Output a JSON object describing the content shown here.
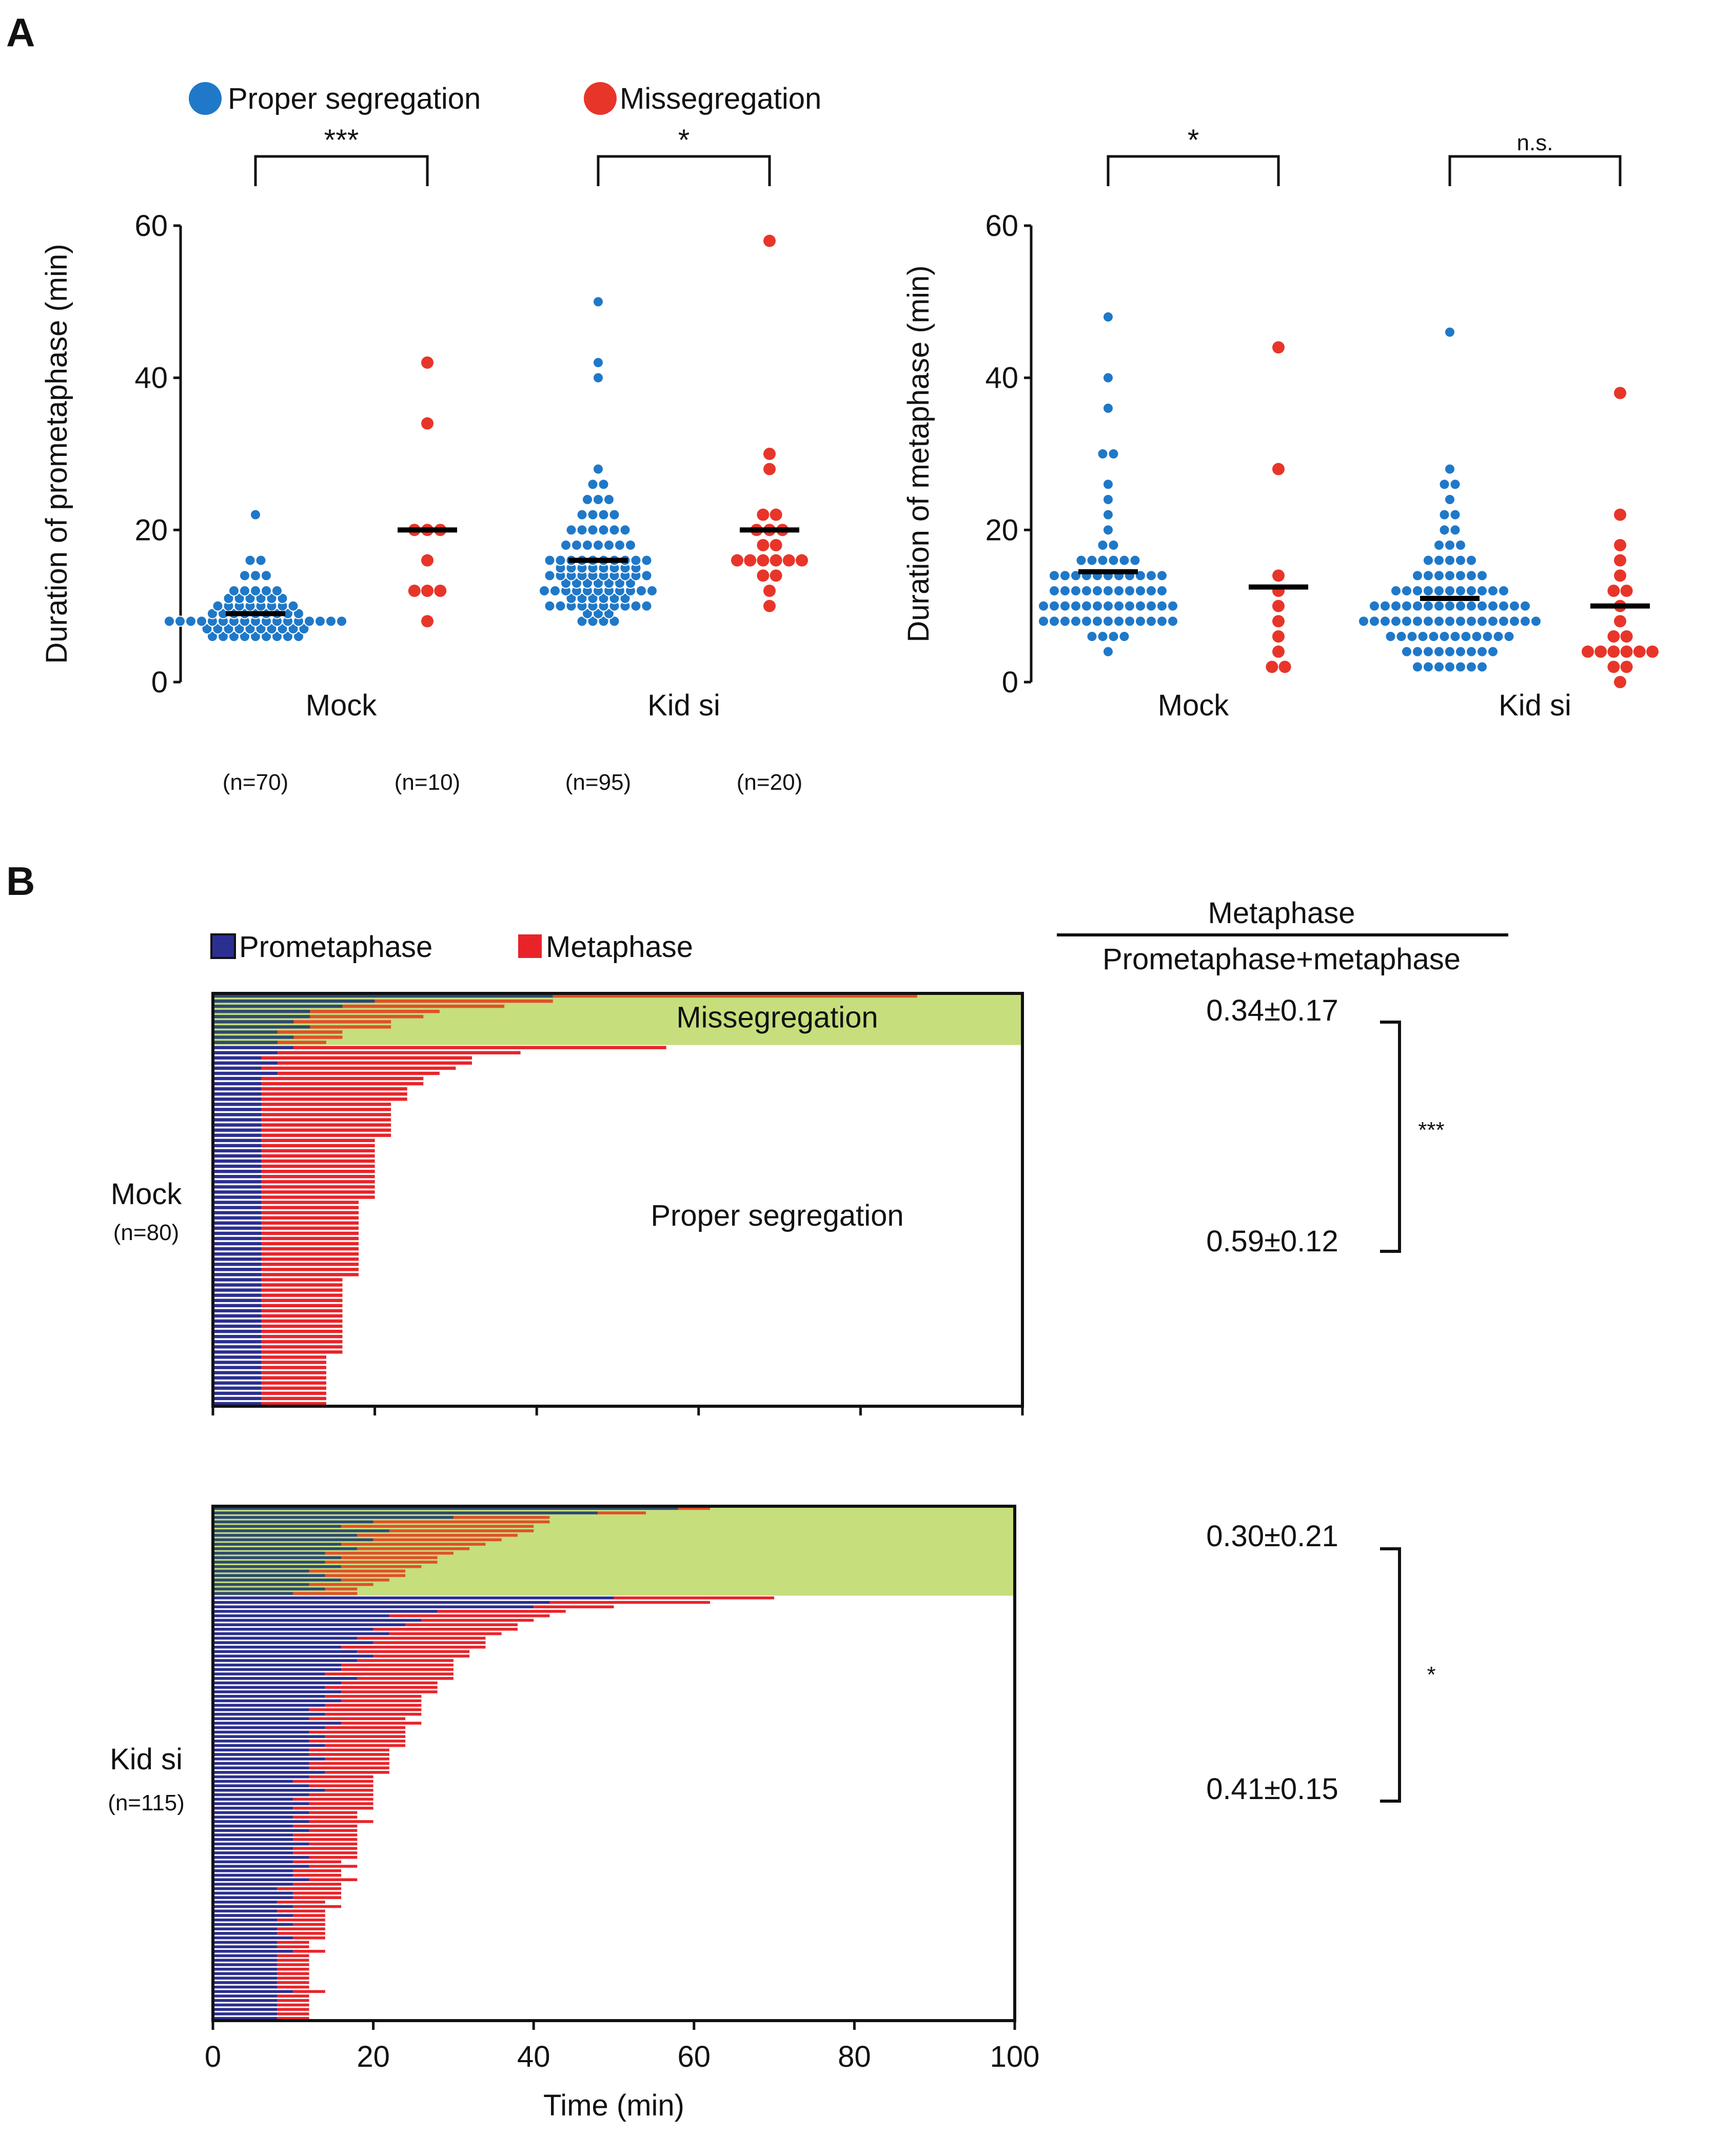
{
  "panel_a_label": "A",
  "panel_b_label": "B",
  "legend_a": {
    "proper": {
      "label": "Proper segregation",
      "color": "#1f78c8"
    },
    "missegregation": {
      "label": "Missegregation",
      "color": "#e8352a"
    }
  },
  "legend_b": {
    "prometaphase": {
      "label": "Prometaphase",
      "color": "#2b2f8f"
    },
    "metaphase": {
      "label": "Metaphase",
      "color": "#e8242a"
    }
  },
  "ratio_header": {
    "numerator": "Metaphase",
    "denominator": "Prometaphase+metaphase"
  },
  "n_labels": [
    "(n=70)",
    "(n=10)",
    "(n=95)",
    "(n=20)"
  ],
  "chart_data": [
    {
      "type": "scatter",
      "title": "",
      "ylabel": "Duration of prometaphase (min)",
      "xlabel": "",
      "ylim": [
        0,
        60
      ],
      "yticks": [
        0,
        20,
        40,
        60
      ],
      "groups": [
        "Mock",
        "Kid si"
      ],
      "significance": [
        {
          "group": "Mock",
          "label": "***"
        },
        {
          "group": "Kid si",
          "label": "*"
        }
      ],
      "series": [
        {
          "name": "Proper segregation",
          "group": "Mock",
          "n": 70,
          "mean": 9,
          "values": [
            22,
            16,
            16,
            14,
            14,
            14,
            12,
            12,
            12,
            12,
            12,
            11,
            11,
            11,
            11,
            11,
            11,
            10,
            10,
            10,
            10,
            10,
            10,
            10,
            10,
            9,
            9,
            9,
            9,
            9,
            9,
            9,
            9,
            9,
            8,
            8,
            8,
            8,
            8,
            8,
            8,
            8,
            8,
            8,
            8,
            8,
            8,
            8,
            8,
            8,
            8,
            7,
            7,
            7,
            7,
            7,
            7,
            7,
            7,
            7,
            7,
            6,
            6,
            6,
            6,
            6,
            6,
            6,
            6,
            6
          ]
        },
        {
          "name": "Missegregation",
          "group": "Mock",
          "n": 10,
          "mean": 20,
          "values": [
            42,
            34,
            20,
            20,
            20,
            16,
            12,
            12,
            12,
            8
          ]
        },
        {
          "name": "Proper segregation",
          "group": "Kid si",
          "n": 95,
          "mean": 16,
          "values": [
            50,
            42,
            40,
            28,
            26,
            26,
            24,
            24,
            24,
            22,
            22,
            22,
            22,
            20,
            20,
            20,
            20,
            20,
            20,
            18,
            18,
            18,
            18,
            18,
            18,
            18,
            16,
            16,
            16,
            16,
            16,
            16,
            16,
            16,
            16,
            16,
            15,
            15,
            15,
            15,
            15,
            15,
            15,
            15,
            14,
            14,
            14,
            14,
            14,
            14,
            14,
            14,
            14,
            14,
            13,
            13,
            13,
            13,
            13,
            13,
            13,
            12,
            12,
            12,
            12,
            12,
            12,
            12,
            12,
            12,
            12,
            12,
            11,
            11,
            11,
            11,
            11,
            11,
            10,
            10,
            10,
            10,
            10,
            10,
            10,
            10,
            10,
            10,
            9,
            9,
            9,
            8,
            8,
            8,
            8
          ]
        },
        {
          "name": "Missegregation",
          "group": "Kid si",
          "n": 20,
          "mean": 20,
          "values": [
            58,
            30,
            28,
            22,
            22,
            20,
            20,
            20,
            18,
            18,
            16,
            16,
            16,
            16,
            16,
            16,
            14,
            14,
            12,
            10
          ]
        }
      ]
    },
    {
      "type": "scatter",
      "title": "",
      "ylabel": "Duration of metaphase (min)",
      "xlabel": "",
      "ylim": [
        0,
        60
      ],
      "yticks": [
        0,
        20,
        40,
        60
      ],
      "groups": [
        "Mock",
        "Kid si"
      ],
      "significance": [
        {
          "group": "Mock",
          "label": "*"
        },
        {
          "group": "Kid si",
          "label": "n.s."
        }
      ],
      "series": [
        {
          "name": "Proper segregation",
          "group": "Mock",
          "n": 70,
          "mean": 14.5,
          "values": [
            48,
            40,
            36,
            30,
            30,
            26,
            24,
            22,
            20,
            18,
            18,
            16,
            16,
            16,
            16,
            16,
            14,
            14,
            14,
            14,
            14,
            14,
            14,
            14,
            14,
            14,
            12,
            12,
            12,
            12,
            12,
            12,
            12,
            12,
            12,
            12,
            10,
            10,
            10,
            10,
            10,
            10,
            10,
            10,
            10,
            10,
            10,
            10,
            10,
            8,
            8,
            8,
            8,
            8,
            8,
            8,
            8,
            8,
            8,
            8,
            8,
            8,
            6,
            6,
            6,
            6,
            4,
            14,
            12,
            16
          ]
        },
        {
          "name": "Missegregation",
          "group": "Mock",
          "n": 10,
          "mean": 12.5,
          "values": [
            44,
            28,
            14,
            12,
            10,
            8,
            6,
            4,
            2,
            2
          ]
        },
        {
          "name": "Proper segregation",
          "group": "Kid si",
          "n": 95,
          "mean": 11,
          "values": [
            46,
            28,
            26,
            26,
            24,
            22,
            22,
            20,
            20,
            18,
            18,
            18,
            16,
            16,
            16,
            16,
            16,
            14,
            14,
            14,
            14,
            14,
            14,
            14,
            12,
            12,
            12,
            12,
            12,
            12,
            12,
            12,
            12,
            12,
            10,
            10,
            10,
            10,
            10,
            10,
            10,
            10,
            10,
            10,
            10,
            10,
            10,
            10,
            8,
            8,
            8,
            8,
            8,
            8,
            8,
            8,
            8,
            8,
            8,
            8,
            8,
            8,
            8,
            8,
            6,
            6,
            6,
            6,
            6,
            6,
            6,
            6,
            6,
            6,
            6,
            6,
            4,
            4,
            4,
            4,
            4,
            4,
            4,
            4,
            4,
            2,
            2,
            2,
            2,
            2,
            2,
            2,
            12,
            10,
            8
          ]
        },
        {
          "name": "Missegregation",
          "group": "Kid si",
          "n": 20,
          "mean": 10,
          "values": [
            38,
            22,
            18,
            16,
            14,
            12,
            12,
            10,
            8,
            6,
            6,
            4,
            4,
            4,
            4,
            4,
            4,
            2,
            2,
            0
          ]
        }
      ]
    },
    {
      "type": "bar",
      "orientation": "horizontal-stacked",
      "title": "Mock",
      "group_label": "Mock",
      "n_label": "(n=80)",
      "xlim": [
        0,
        100
      ],
      "xticks": [
        0,
        20,
        40,
        60,
        80,
        100
      ],
      "missegregation_label": "Missegregation",
      "proper_label": "Proper segregation",
      "ratios": {
        "missegregation": "0.34±0.17",
        "proper": "0.59±0.12"
      },
      "significance": "***",
      "series_names": [
        "Prometaphase",
        "Metaphase"
      ],
      "missegregation_count": 10,
      "cells": [
        [
          42,
          45
        ],
        [
          20,
          22
        ],
        [
          16,
          20
        ],
        [
          12,
          16
        ],
        [
          12,
          14
        ],
        [
          10,
          12
        ],
        [
          12,
          10
        ],
        [
          8,
          8
        ],
        [
          10,
          6
        ],
        [
          8,
          6
        ],
        [
          10,
          46
        ],
        [
          8,
          30
        ],
        [
          6,
          26
        ],
        [
          8,
          24
        ],
        [
          6,
          24
        ],
        [
          8,
          20
        ],
        [
          6,
          20
        ],
        [
          6,
          20
        ],
        [
          6,
          18
        ],
        [
          6,
          18
        ],
        [
          6,
          18
        ],
        [
          6,
          16
        ],
        [
          6,
          16
        ],
        [
          6,
          16
        ],
        [
          6,
          16
        ],
        [
          6,
          16
        ],
        [
          6,
          16
        ],
        [
          6,
          16
        ],
        [
          6,
          14
        ],
        [
          6,
          14
        ],
        [
          6,
          14
        ],
        [
          6,
          14
        ],
        [
          6,
          14
        ],
        [
          6,
          14
        ],
        [
          6,
          14
        ],
        [
          6,
          14
        ],
        [
          6,
          14
        ],
        [
          6,
          14
        ],
        [
          6,
          14
        ],
        [
          6,
          14
        ],
        [
          6,
          12
        ],
        [
          6,
          12
        ],
        [
          6,
          12
        ],
        [
          6,
          12
        ],
        [
          6,
          12
        ],
        [
          6,
          12
        ],
        [
          6,
          12
        ],
        [
          6,
          12
        ],
        [
          6,
          12
        ],
        [
          6,
          12
        ],
        [
          6,
          12
        ],
        [
          6,
          12
        ],
        [
          6,
          12
        ],
        [
          6,
          12
        ],
        [
          6,
          12
        ],
        [
          6,
          10
        ],
        [
          6,
          10
        ],
        [
          6,
          10
        ],
        [
          6,
          10
        ],
        [
          6,
          10
        ],
        [
          6,
          10
        ],
        [
          6,
          10
        ],
        [
          6,
          10
        ],
        [
          6,
          10
        ],
        [
          6,
          10
        ],
        [
          6,
          10
        ],
        [
          6,
          10
        ],
        [
          6,
          10
        ],
        [
          6,
          10
        ],
        [
          6,
          10
        ],
        [
          6,
          8
        ],
        [
          6,
          8
        ],
        [
          6,
          8
        ],
        [
          6,
          8
        ],
        [
          6,
          8
        ],
        [
          6,
          8
        ],
        [
          6,
          8
        ],
        [
          6,
          8
        ],
        [
          6,
          8
        ],
        [
          6,
          8
        ]
      ]
    },
    {
      "type": "bar",
      "orientation": "horizontal-stacked",
      "title": "Kid si",
      "group_label": "Kid si",
      "n_label": "(n=115)",
      "xlim": [
        0,
        100
      ],
      "xticks": [
        0,
        20,
        40,
        60,
        80,
        100
      ],
      "xlabel": "Time (min)",
      "ratios": {
        "missegregation": "0.30±0.21",
        "proper": "0.41±0.15"
      },
      "significance": "*",
      "series_names": [
        "Prometaphase",
        "Metaphase"
      ],
      "missegregation_count": 20,
      "cells": [
        [
          58,
          4
        ],
        [
          48,
          6
        ],
        [
          30,
          12
        ],
        [
          20,
          22
        ],
        [
          16,
          24
        ],
        [
          22,
          18
        ],
        [
          18,
          20
        ],
        [
          20,
          16
        ],
        [
          16,
          18
        ],
        [
          18,
          14
        ],
        [
          14,
          16
        ],
        [
          16,
          12
        ],
        [
          14,
          14
        ],
        [
          16,
          10
        ],
        [
          12,
          12
        ],
        [
          14,
          10
        ],
        [
          16,
          6
        ],
        [
          12,
          8
        ],
        [
          14,
          4
        ],
        [
          10,
          8
        ],
        [
          50,
          20
        ],
        [
          42,
          20
        ],
        [
          40,
          10
        ],
        [
          28,
          16
        ],
        [
          22,
          20
        ],
        [
          26,
          14
        ],
        [
          24,
          14
        ],
        [
          20,
          18
        ],
        [
          22,
          14
        ],
        [
          18,
          16
        ],
        [
          20,
          14
        ],
        [
          16,
          18
        ],
        [
          18,
          14
        ],
        [
          20,
          12
        ],
        [
          18,
          12
        ],
        [
          16,
          14
        ],
        [
          16,
          14
        ],
        [
          14,
          16
        ],
        [
          18,
          12
        ],
        [
          16,
          12
        ],
        [
          14,
          14
        ],
        [
          16,
          12
        ],
        [
          14,
          12
        ],
        [
          16,
          10
        ],
        [
          14,
          12
        ],
        [
          12,
          14
        ],
        [
          14,
          12
        ],
        [
          12,
          12
        ],
        [
          16,
          10
        ],
        [
          14,
          10
        ],
        [
          12,
          12
        ],
        [
          14,
          10
        ],
        [
          12,
          12
        ],
        [
          14,
          10
        ],
        [
          12,
          10
        ],
        [
          12,
          10
        ],
        [
          14,
          8
        ],
        [
          12,
          10
        ],
        [
          12,
          10
        ],
        [
          14,
          8
        ],
        [
          12,
          8
        ],
        [
          10,
          10
        ],
        [
          12,
          8
        ],
        [
          14,
          6
        ],
        [
          12,
          8
        ],
        [
          10,
          10
        ],
        [
          12,
          8
        ],
        [
          10,
          10
        ],
        [
          12,
          6
        ],
        [
          10,
          8
        ],
        [
          12,
          8
        ],
        [
          10,
          8
        ],
        [
          12,
          6
        ],
        [
          10,
          8
        ],
        [
          10,
          8
        ],
        [
          12,
          6
        ],
        [
          10,
          8
        ],
        [
          10,
          8
        ],
        [
          12,
          6
        ],
        [
          10,
          6
        ],
        [
          12,
          6
        ],
        [
          10,
          6
        ],
        [
          10,
          6
        ],
        [
          12,
          6
        ],
        [
          10,
          6
        ],
        [
          8,
          8
        ],
        [
          10,
          6
        ],
        [
          10,
          6
        ],
        [
          8,
          6
        ],
        [
          10,
          6
        ],
        [
          8,
          6
        ],
        [
          10,
          4
        ],
        [
          8,
          6
        ],
        [
          10,
          4
        ],
        [
          8,
          6
        ],
        [
          8,
          6
        ],
        [
          10,
          4
        ],
        [
          8,
          4
        ],
        [
          8,
          4
        ],
        [
          10,
          4
        ],
        [
          8,
          4
        ],
        [
          8,
          4
        ],
        [
          8,
          4
        ],
        [
          8,
          4
        ],
        [
          8,
          4
        ],
        [
          8,
          4
        ],
        [
          8,
          4
        ],
        [
          8,
          4
        ],
        [
          10,
          4
        ],
        [
          8,
          4
        ],
        [
          8,
          4
        ],
        [
          8,
          4
        ],
        [
          8,
          4
        ],
        [
          8,
          4
        ],
        [
          8,
          4
        ]
      ]
    }
  ]
}
